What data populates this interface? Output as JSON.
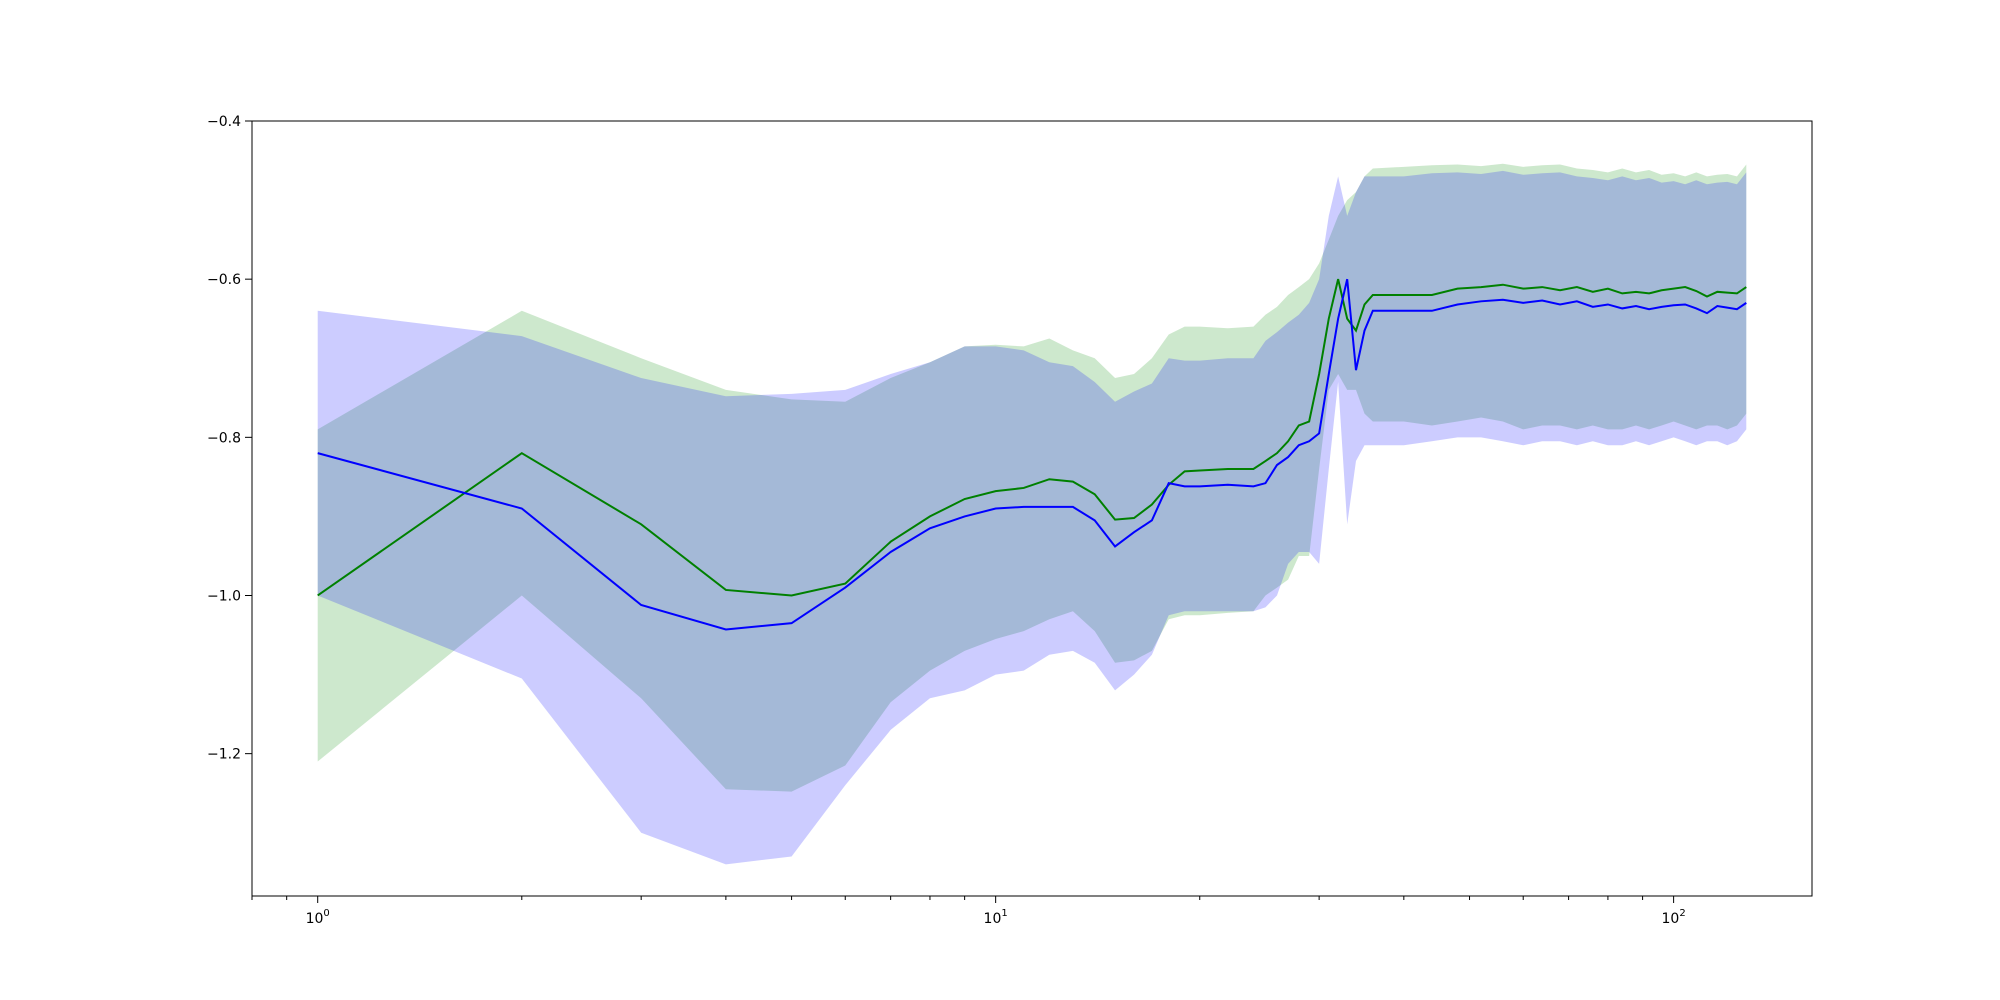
{
  "chart_data": {
    "type": "line",
    "title": "",
    "xlabel": "",
    "ylabel": "",
    "x_scale": "log",
    "xlim": [
      0.8,
      160
    ],
    "ylim": [
      -1.38,
      -0.4
    ],
    "grid": false,
    "legend": "none",
    "x_ticks": [
      {
        "value": 1,
        "base": "10",
        "exp": "0"
      },
      {
        "value": 10,
        "base": "10",
        "exp": "1"
      },
      {
        "value": 100,
        "base": "10",
        "exp": "2"
      }
    ],
    "y_ticks": [
      {
        "value": -1.2,
        "label": "−1.2"
      },
      {
        "value": -1.0,
        "label": "−1.0"
      },
      {
        "value": -0.8,
        "label": "−0.8"
      },
      {
        "value": -0.6,
        "label": "−0.6"
      },
      {
        "value": -0.4,
        "label": "−0.4"
      }
    ],
    "x": [
      1,
      2,
      3,
      4,
      5,
      6,
      7,
      8,
      9,
      10,
      11,
      12,
      13,
      14,
      15,
      16,
      17,
      18,
      19,
      20,
      22,
      24,
      25,
      26,
      27,
      28,
      29,
      30,
      31,
      32,
      33,
      34,
      35,
      36,
      40,
      44,
      48,
      52,
      56,
      60,
      64,
      68,
      72,
      76,
      80,
      84,
      88,
      92,
      96,
      100,
      104,
      108,
      112,
      116,
      120,
      124,
      128
    ],
    "series": [
      {
        "name": "",
        "color": "#008000",
        "band_color": "#2ca02c",
        "values": [
          -1.0,
          -0.82,
          -0.91,
          -0.993,
          -1.0,
          -0.985,
          -0.932,
          -0.9,
          -0.878,
          -0.868,
          -0.864,
          -0.853,
          -0.856,
          -0.872,
          -0.904,
          -0.902,
          -0.885,
          -0.86,
          -0.843,
          -0.842,
          -0.84,
          -0.84,
          -0.83,
          -0.82,
          -0.805,
          -0.785,
          -0.78,
          -0.72,
          -0.65,
          -0.6,
          -0.65,
          -0.665,
          -0.632,
          -0.62,
          -0.62,
          -0.62,
          -0.612,
          -0.61,
          -0.607,
          -0.612,
          -0.61,
          -0.614,
          -0.61,
          -0.616,
          -0.612,
          -0.618,
          -0.616,
          -0.618,
          -0.614,
          -0.612,
          -0.61,
          -0.615,
          -0.622,
          -0.616,
          -0.617,
          -0.618,
          -0.61
        ],
        "upper": [
          -0.79,
          -0.64,
          -0.7,
          -0.74,
          -0.752,
          -0.755,
          -0.725,
          -0.705,
          -0.685,
          -0.683,
          -0.685,
          -0.675,
          -0.69,
          -0.7,
          -0.725,
          -0.72,
          -0.7,
          -0.67,
          -0.66,
          -0.66,
          -0.662,
          -0.66,
          -0.645,
          -0.635,
          -0.62,
          -0.61,
          -0.6,
          -0.58,
          -0.55,
          -0.52,
          -0.5,
          -0.49,
          -0.47,
          -0.46,
          -0.458,
          -0.456,
          -0.455,
          -0.457,
          -0.454,
          -0.458,
          -0.456,
          -0.455,
          -0.46,
          -0.462,
          -0.465,
          -0.46,
          -0.465,
          -0.462,
          -0.468,
          -0.466,
          -0.47,
          -0.465,
          -0.47,
          -0.468,
          -0.467,
          -0.47,
          -0.455
        ],
        "lower": [
          -1.21,
          -1.0,
          -1.13,
          -1.245,
          -1.248,
          -1.215,
          -1.135,
          -1.095,
          -1.07,
          -1.055,
          -1.045,
          -1.03,
          -1.02,
          -1.045,
          -1.085,
          -1.082,
          -1.07,
          -1.03,
          -1.025,
          -1.025,
          -1.022,
          -1.02,
          -1.0,
          -0.99,
          -0.98,
          -0.95,
          -0.95,
          -0.84,
          -0.74,
          -0.72,
          -0.74,
          -0.74,
          -0.77,
          -0.78,
          -0.78,
          -0.785,
          -0.78,
          -0.775,
          -0.78,
          -0.79,
          -0.785,
          -0.785,
          -0.79,
          -0.785,
          -0.79,
          -0.79,
          -0.785,
          -0.79,
          -0.785,
          -0.78,
          -0.785,
          -0.79,
          -0.785,
          -0.785,
          -0.79,
          -0.785,
          -0.77
        ]
      },
      {
        "name": "",
        "color": "#0000ff",
        "band_color": "#0000ff",
        "values": [
          -0.82,
          -0.89,
          -1.012,
          -1.043,
          -1.035,
          -0.99,
          -0.945,
          -0.915,
          -0.9,
          -0.89,
          -0.888,
          -0.888,
          -0.888,
          -0.905,
          -0.938,
          -0.92,
          -0.905,
          -0.858,
          -0.862,
          -0.862,
          -0.86,
          -0.862,
          -0.858,
          -0.835,
          -0.825,
          -0.81,
          -0.805,
          -0.795,
          -0.72,
          -0.65,
          -0.6,
          -0.715,
          -0.665,
          -0.64,
          -0.64,
          -0.64,
          -0.632,
          -0.628,
          -0.626,
          -0.63,
          -0.627,
          -0.632,
          -0.628,
          -0.635,
          -0.632,
          -0.637,
          -0.634,
          -0.638,
          -0.635,
          -0.633,
          -0.632,
          -0.637,
          -0.643,
          -0.634,
          -0.636,
          -0.638,
          -0.63
        ],
        "upper": [
          -0.64,
          -0.672,
          -0.725,
          -0.748,
          -0.745,
          -0.74,
          -0.72,
          -0.705,
          -0.685,
          -0.685,
          -0.69,
          -0.705,
          -0.71,
          -0.73,
          -0.755,
          -0.742,
          -0.732,
          -0.7,
          -0.703,
          -0.703,
          -0.7,
          -0.7,
          -0.678,
          -0.667,
          -0.655,
          -0.645,
          -0.63,
          -0.6,
          -0.52,
          -0.47,
          -0.52,
          -0.49,
          -0.47,
          -0.47,
          -0.47,
          -0.466,
          -0.465,
          -0.467,
          -0.463,
          -0.468,
          -0.466,
          -0.465,
          -0.47,
          -0.472,
          -0.475,
          -0.47,
          -0.475,
          -0.472,
          -0.478,
          -0.476,
          -0.48,
          -0.475,
          -0.48,
          -0.478,
          -0.477,
          -0.48,
          -0.465
        ],
        "lower": [
          -1.0,
          -1.105,
          -1.3,
          -1.34,
          -1.33,
          -1.24,
          -1.17,
          -1.13,
          -1.12,
          -1.1,
          -1.095,
          -1.075,
          -1.07,
          -1.085,
          -1.12,
          -1.1,
          -1.075,
          -1.025,
          -1.02,
          -1.02,
          -1.02,
          -1.02,
          -1.015,
          -1.0,
          -0.96,
          -0.945,
          -0.945,
          -0.96,
          -0.84,
          -0.73,
          -0.91,
          -0.83,
          -0.81,
          -0.81,
          -0.81,
          -0.805,
          -0.8,
          -0.8,
          -0.805,
          -0.81,
          -0.805,
          -0.805,
          -0.81,
          -0.805,
          -0.81,
          -0.81,
          -0.805,
          -0.81,
          -0.805,
          -0.8,
          -0.805,
          -0.81,
          -0.805,
          -0.805,
          -0.81,
          -0.805,
          -0.79
        ]
      }
    ]
  }
}
